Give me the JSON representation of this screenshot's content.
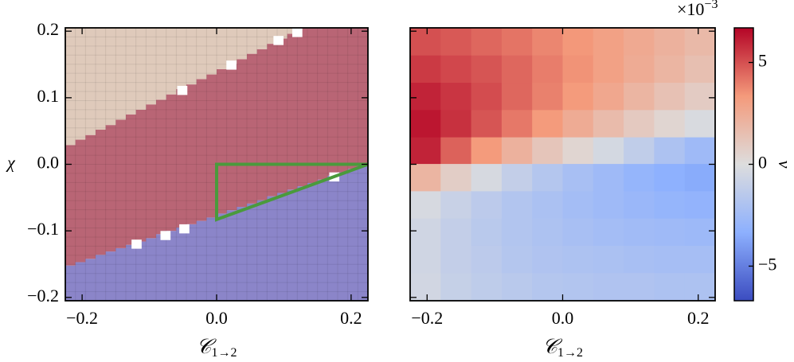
{
  "chart_data": [
    {
      "type": "phase",
      "xlabel": {
        "main": "𝒞",
        "sub": "1→2"
      },
      "ylabel": "χ",
      "xlim": [
        -0.225,
        0.225
      ],
      "ylim": [
        -0.205,
        0.205
      ],
      "xticks": [
        {
          "value": -0.2,
          "label": "−0.2"
        },
        {
          "value": 0,
          "label": "0.0"
        },
        {
          "value": 0.2,
          "label": "0.2"
        }
      ],
      "yticks": [
        {
          "value": -0.2,
          "label": "−0.2"
        },
        {
          "value": -0.1,
          "label": "−0.1"
        },
        {
          "value": 0,
          "label": "0.0"
        },
        {
          "value": 0.1,
          "label": "0.1"
        },
        {
          "value": 0.2,
          "label": "0.2"
        }
      ],
      "bins": [
        -0.225,
        -0.21,
        -0.195,
        -0.18,
        -0.165,
        -0.15,
        -0.135,
        -0.12,
        -0.105,
        -0.09,
        -0.075,
        -0.06,
        -0.045,
        -0.03,
        -0.015,
        0,
        0.015,
        0.03,
        0.045,
        0.06,
        0.075,
        0.09,
        0.105,
        0.12,
        0.135,
        0.15,
        0.165,
        0.18,
        0.195,
        0.21,
        0.225
      ],
      "lower_boundary": [
        -0.152,
        -0.147,
        -0.142,
        -0.136,
        -0.131,
        -0.126,
        -0.121,
        -0.116,
        -0.111,
        -0.105,
        -0.1,
        -0.095,
        -0.09,
        -0.085,
        -0.08,
        -0.074,
        -0.069,
        -0.064,
        -0.059,
        -0.054,
        -0.048,
        -0.043,
        -0.038,
        -0.033,
        -0.028,
        -0.023,
        -0.017,
        -0.012,
        -0.007,
        -0.002
      ],
      "upper_boundary": [
        0.029,
        0.037,
        0.044,
        0.052,
        0.059,
        0.067,
        0.075,
        0.082,
        0.09,
        0.097,
        0.105,
        0.113,
        0.12,
        0.128,
        0.135,
        0.143,
        0.151,
        0.158,
        0.166,
        0.173,
        0.181,
        0.189,
        0.196,
        0.205,
        0.205,
        0.205,
        0.205,
        0.205,
        0.205,
        0.205
      ],
      "region_colors": [
        "#8b85c9",
        "#b96575",
        "#dfcabb"
      ],
      "white_cells": {
        "x": [
          0.12,
          0.092,
          0.022,
          -0.051,
          0.175,
          -0.048,
          -0.076,
          -0.119
        ],
        "y": [
          0.198,
          0.186,
          0.149,
          0.111,
          -0.019,
          -0.097,
          -0.107,
          -0.12
        ]
      },
      "triangle": {
        "x": [
          0,
          0.225,
          0
        ],
        "y": [
          0,
          0,
          -0.083
        ],
        "color": "#4a9a3c"
      }
    },
    {
      "type": "heatmap",
      "xlabel": {
        "main": "𝒞",
        "sub": "1→2"
      },
      "xlim": [
        -0.225,
        0.225
      ],
      "ylim": [
        -0.205,
        0.205
      ],
      "xticks": [
        {
          "value": -0.2,
          "label": "−0.2"
        },
        {
          "value": 0,
          "label": "0.0"
        },
        {
          "value": 0.2,
          "label": "0.2"
        }
      ],
      "yticks": [
        -0.2,
        -0.1,
        0,
        0.1,
        0.2
      ],
      "x": [
        -0.2025,
        -0.1575,
        -0.1125,
        -0.0675,
        -0.0225,
        0.0225,
        0.0675,
        0.1125,
        0.1575,
        0.2025
      ],
      "y": [
        0.184,
        0.143,
        0.102,
        0.061,
        0.02,
        -0.02,
        -0.061,
        -0.102,
        -0.143,
        -0.184
      ],
      "values": [
        [
          5.0,
          4.8,
          4.5,
          4.2,
          3.8,
          3.4,
          3.0,
          2.6,
          2.2,
          1.8
        ],
        [
          5.5,
          5.2,
          4.9,
          4.5,
          4.0,
          3.5,
          3.0,
          2.5,
          2.0,
          1.5
        ],
        [
          6.0,
          5.6,
          5.1,
          4.5,
          3.9,
          3.3,
          2.7,
          2.0,
          1.4,
          0.9
        ],
        [
          6.3,
          5.7,
          4.9,
          4.1,
          3.3,
          2.5,
          1.7,
          1.0,
          0.4,
          -0.2
        ],
        [
          6.0,
          4.6,
          3.3,
          2.2,
          1.2,
          0.4,
          -0.4,
          -1.2,
          -2.0,
          -2.6
        ],
        [
          2.0,
          0.8,
          -0.3,
          -1.1,
          -1.7,
          -2.2,
          -2.6,
          -3.0,
          -3.3,
          -3.5
        ],
        [
          -0.3,
          -0.9,
          -1.4,
          -1.8,
          -2.1,
          -2.4,
          -2.6,
          -2.8,
          -3.0,
          -3.1
        ],
        [
          -0.6,
          -1.1,
          -1.5,
          -1.8,
          -2.0,
          -2.2,
          -2.4,
          -2.5,
          -2.6,
          -2.7
        ],
        [
          -0.6,
          -1.1,
          -1.4,
          -1.7,
          -1.9,
          -2.0,
          -2.1,
          -2.2,
          -2.3,
          -2.3
        ],
        [
          -0.5,
          -1.0,
          -1.3,
          -1.5,
          -1.7,
          -1.8,
          -1.9,
          -1.9,
          -2.0,
          -2.0
        ]
      ],
      "colorbar": {
        "label": "v",
        "offset": {
          "base": "×10",
          "exp": "−3"
        },
        "clim": [
          -6.7,
          6.7
        ],
        "ticks": [
          {
            "value": -5,
            "label": "−5"
          },
          0,
          5
        ],
        "colormap": [
          "#3b4cc0",
          "#8db0fe",
          "#dddddd",
          "#f49a7b",
          "#b40426"
        ]
      }
    }
  ]
}
